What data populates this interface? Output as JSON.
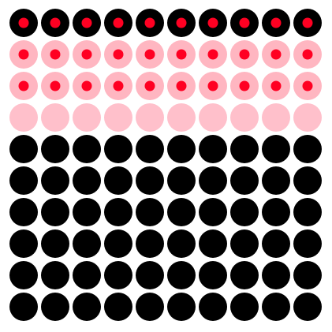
{
  "grid": {
    "columns": 10,
    "rows": [
      {
        "fill": "#000000",
        "center_dot": "#ff0022"
      },
      {
        "fill": "#ffb6c1",
        "center_dot": "#ff0022"
      },
      {
        "fill": "#ffb6c1",
        "center_dot": "#ff0022"
      },
      {
        "fill": "#ffc0cb",
        "center_dot": null
      },
      {
        "fill": "#000000",
        "center_dot": null
      },
      {
        "fill": "#000000",
        "center_dot": null
      },
      {
        "fill": "#000000",
        "center_dot": null
      },
      {
        "fill": "#000000",
        "center_dot": null
      },
      {
        "fill": "#000000",
        "center_dot": null
      },
      {
        "fill": "#000000",
        "center_dot": null
      }
    ]
  }
}
